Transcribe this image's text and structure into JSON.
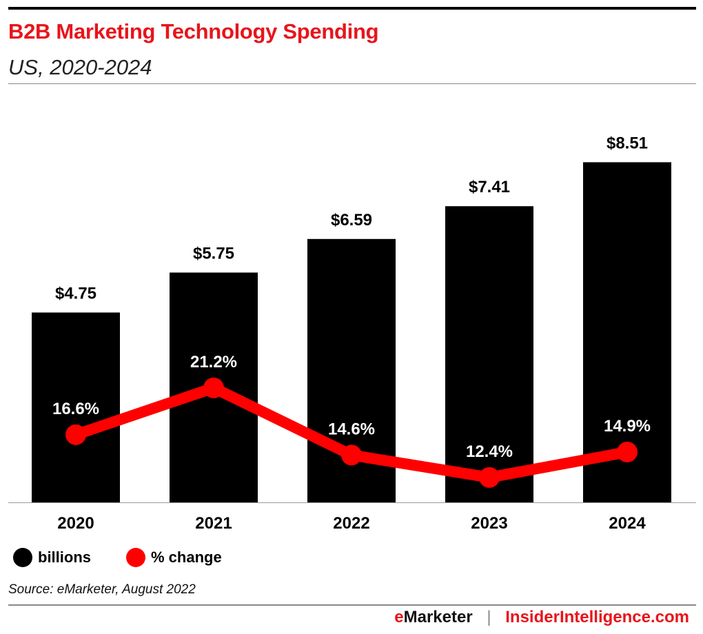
{
  "title": "B2B Marketing Technology Spending",
  "subtitle": "US, 2020-2024",
  "source": "Source: eMarketer, August 2022",
  "footer": {
    "brand1_e": "e",
    "brand1_rest": "Marketer",
    "separator": "|",
    "brand2": "InsiderIntelligence.com"
  },
  "colors": {
    "bars": "#000000",
    "line": "#ff0000",
    "title": "#e8141b"
  },
  "chart_data": {
    "type": "bar+line",
    "categories": [
      "2020",
      "2021",
      "2022",
      "2023",
      "2024"
    ],
    "series": [
      {
        "name": "billions",
        "type": "bar",
        "values": [
          4.75,
          5.75,
          6.59,
          7.41,
          8.51
        ],
        "labels": [
          "$4.75",
          "$5.75",
          "$6.59",
          "$7.41",
          "$8.51"
        ]
      },
      {
        "name": "% change",
        "type": "line",
        "values": [
          16.6,
          21.2,
          14.6,
          12.4,
          14.9
        ],
        "labels": [
          "16.6%",
          "21.2%",
          "14.6%",
          "12.4%",
          "14.9%"
        ]
      }
    ],
    "grid": false,
    "legend": "bottom-left"
  }
}
